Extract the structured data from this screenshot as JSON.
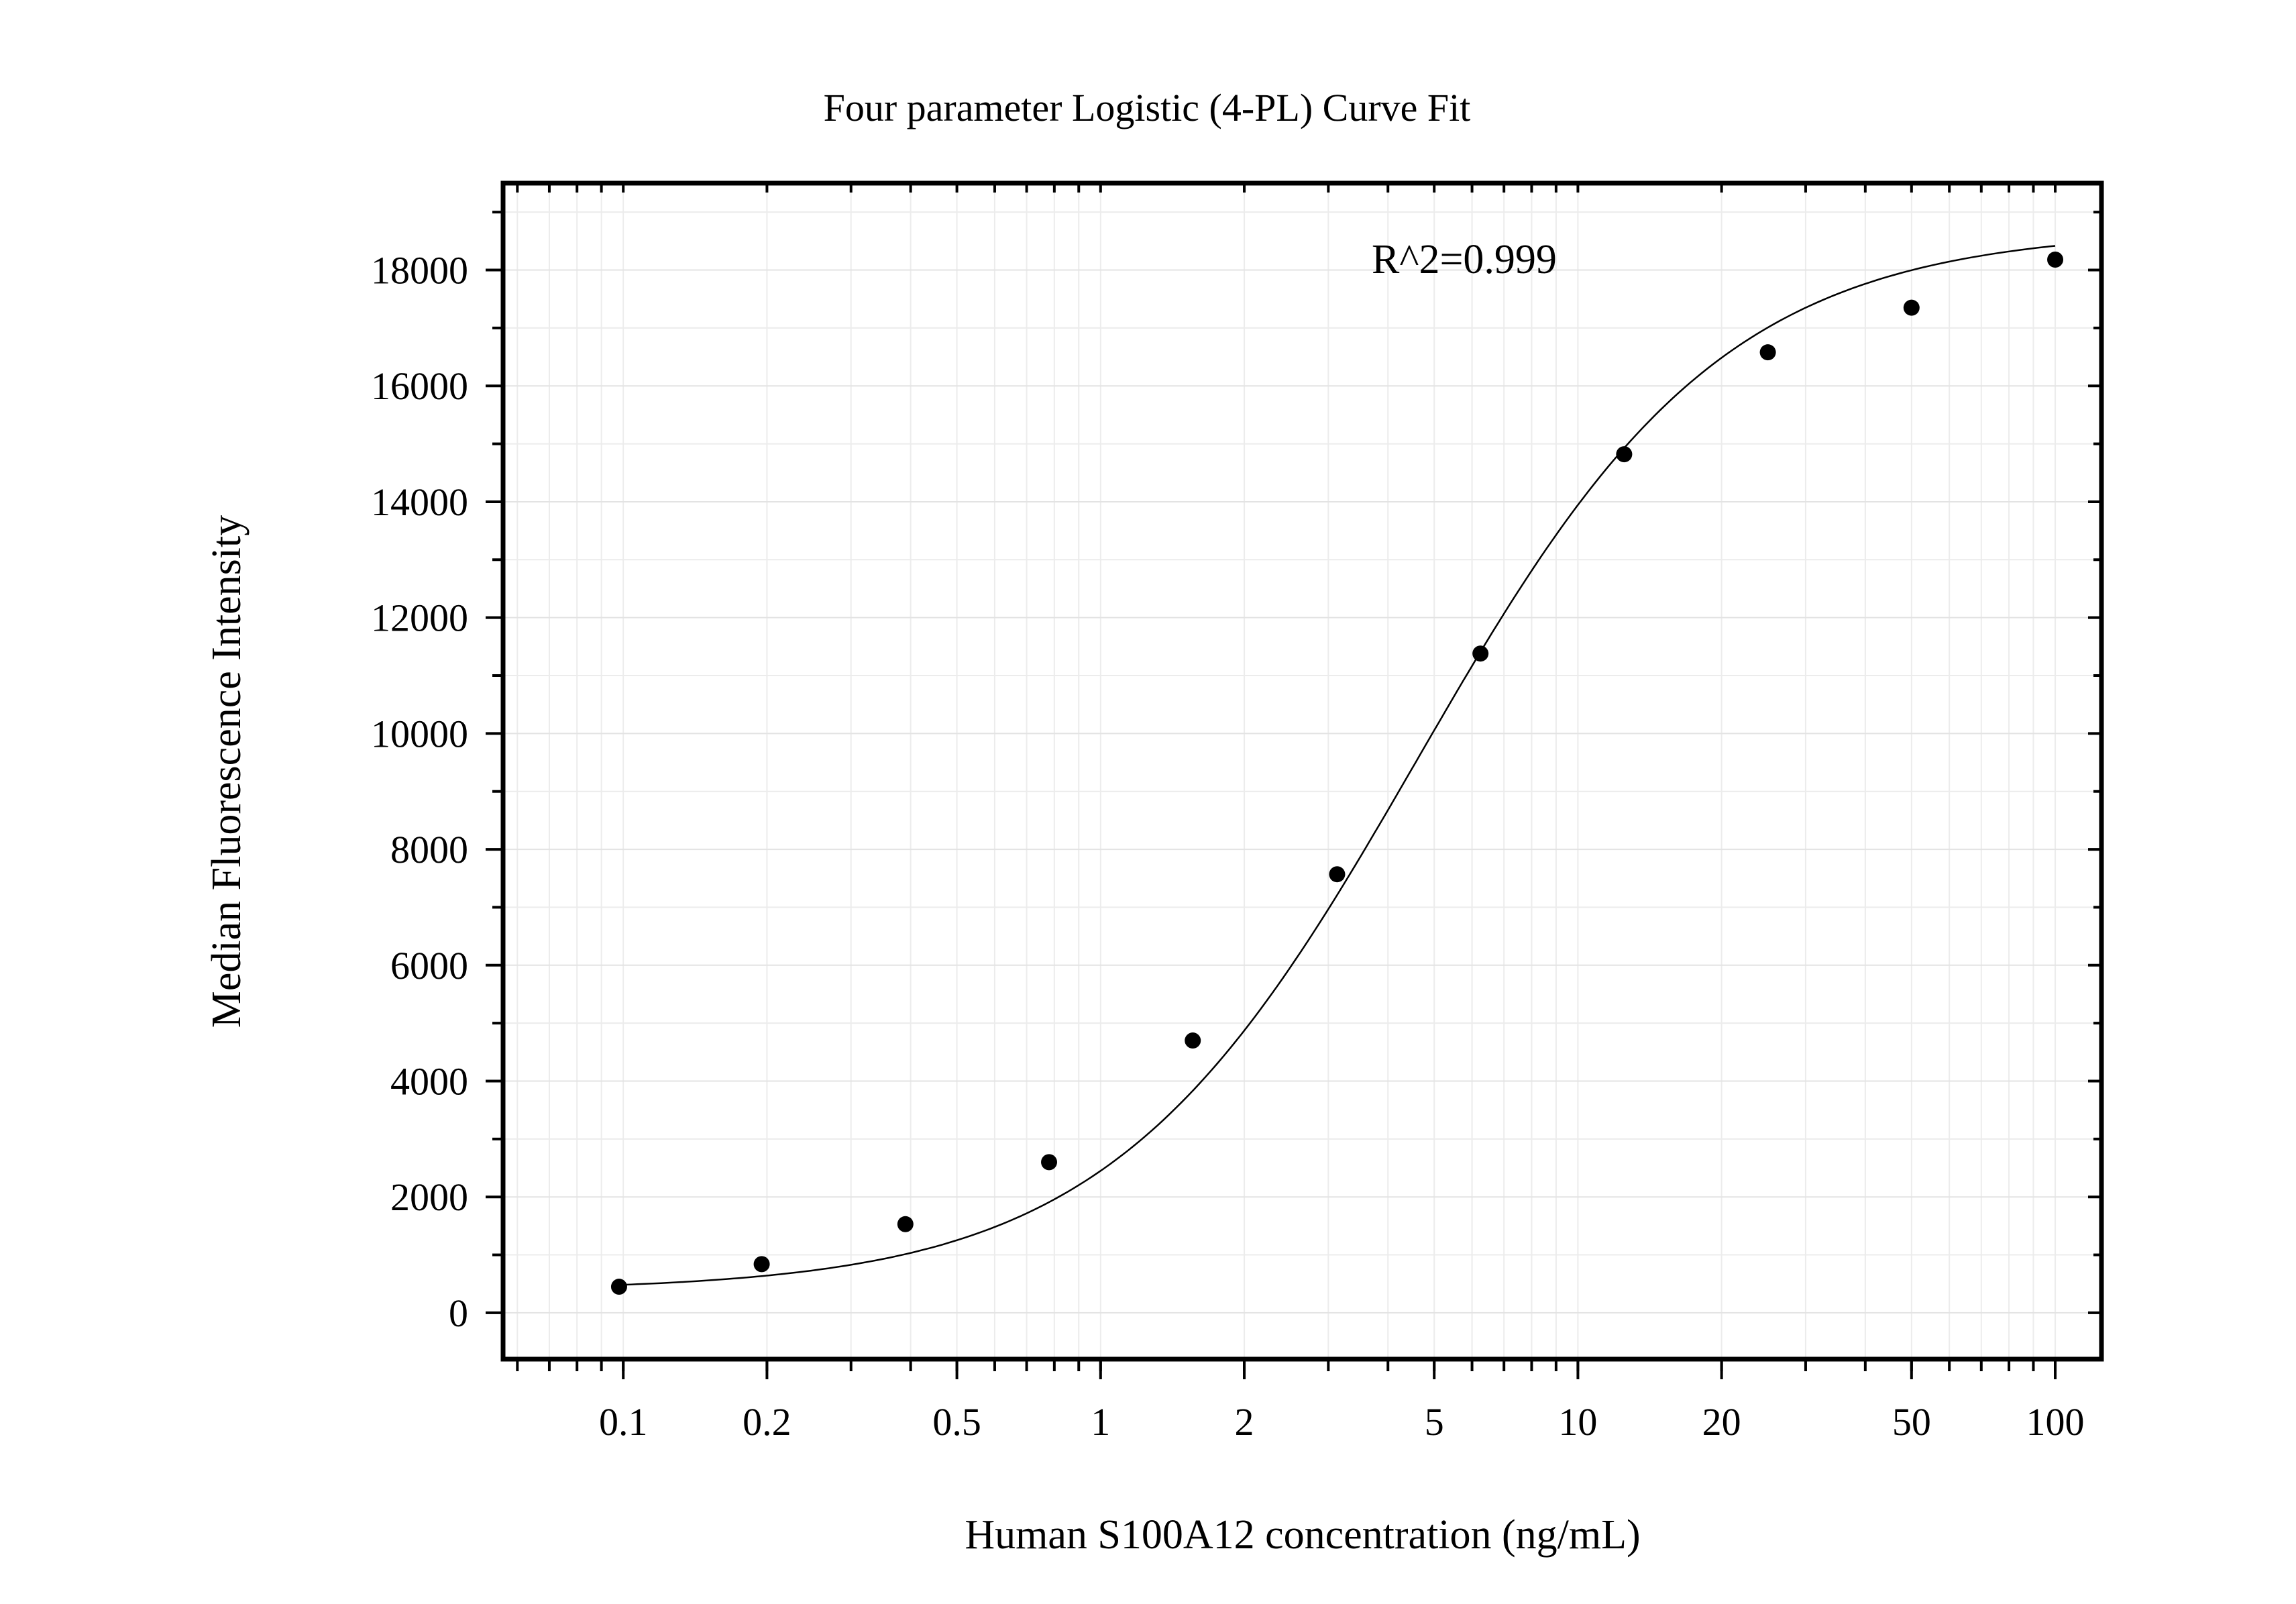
{
  "chart_data": {
    "type": "scatter",
    "title": "Four parameter Logistic (4-PL) Curve Fit",
    "xlabel": "Human S100A12 concentration (ng/mL)",
    "ylabel": "Median Fluorescence Intensity",
    "x_scale": "log",
    "xlim": [
      0.056,
      125
    ],
    "ylim": [
      -800,
      19500
    ],
    "x_ticks": [
      0.1,
      0.2,
      0.5,
      1,
      2,
      5,
      10,
      20,
      50,
      100
    ],
    "x_tick_labels": [
      "0.1",
      "0.2",
      "0.5",
      "1",
      "2",
      "5",
      "10",
      "20",
      "50",
      "100"
    ],
    "y_ticks": [
      0,
      2000,
      4000,
      6000,
      8000,
      10000,
      12000,
      14000,
      16000,
      18000
    ],
    "y_tick_labels": [
      "0",
      "2000",
      "4000",
      "6000",
      "8000",
      "10000",
      "12000",
      "14000",
      "16000",
      "18000"
    ],
    "annotation": "R^2=0.999",
    "grid": true,
    "series": [
      {
        "points": [
          {
            "x": 0.098,
            "y": 450
          },
          {
            "x": 0.195,
            "y": 840
          },
          {
            "x": 0.39,
            "y": 1530
          },
          {
            "x": 0.78,
            "y": 2600
          },
          {
            "x": 1.56,
            "y": 4700
          },
          {
            "x": 3.13,
            "y": 7570
          },
          {
            "x": 6.25,
            "y": 11380
          },
          {
            "x": 12.5,
            "y": 14820
          },
          {
            "x": 25,
            "y": 16580
          },
          {
            "x": 50,
            "y": 17350
          },
          {
            "x": 100,
            "y": 18180
          }
        ]
      }
    ],
    "fit": {
      "model": "4-PL",
      "bottom": 380,
      "top": 18700,
      "ec50": 4.6,
      "hill": 1.35,
      "x_range": [
        0.098,
        100
      ]
    }
  }
}
